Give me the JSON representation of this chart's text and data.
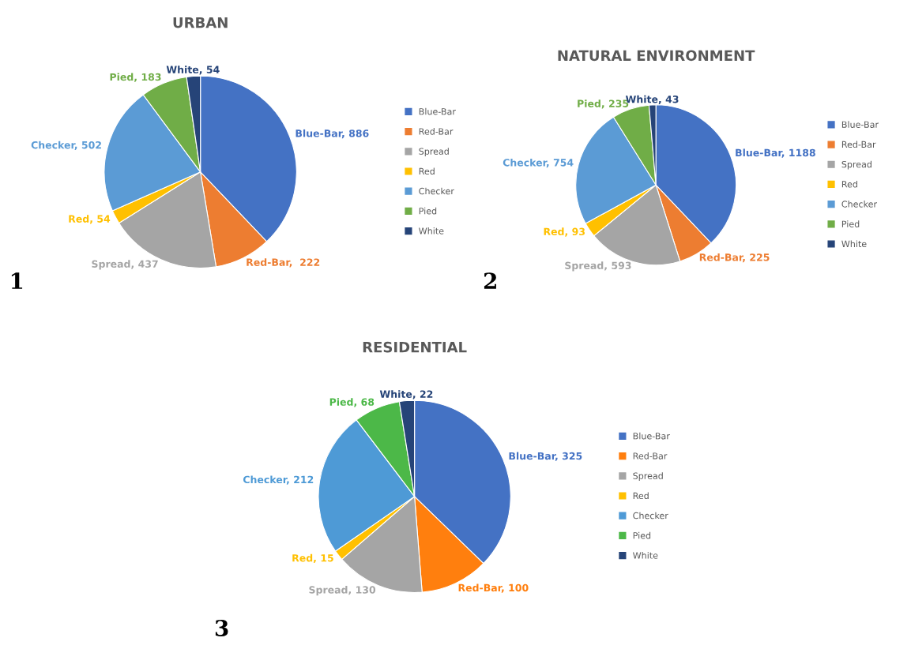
{
  "chart_data": [
    {
      "type": "pie",
      "title": "URBAN",
      "categories": [
        "Blue-Bar",
        "Red-Bar",
        "Spread",
        "Red",
        "Checker",
        "Pied",
        "White"
      ],
      "values": [
        886,
        222,
        437,
        54,
        502,
        183,
        54
      ],
      "value_labels": [
        "Blue-Bar, 886",
        "Red-Bar,  222",
        "Spread, 437",
        "Red, 54",
        "Checker, 502",
        "Pied, 183",
        "White, 54"
      ],
      "colors": [
        "#4472c4",
        "#ed7d31",
        "#a5a5a5",
        "#ffc000",
        "#5b9bd5",
        "#70ad47",
        "#264478"
      ],
      "legend": "right",
      "annotations": [
        "1"
      ]
    },
    {
      "type": "pie",
      "title": "NATURAL ENVIRONMENT",
      "categories": [
        "Blue-Bar",
        "Red-Bar",
        "Spread",
        "Red",
        "Checker",
        "Pied",
        "White"
      ],
      "values": [
        1188,
        225,
        593,
        93,
        754,
        235,
        43
      ],
      "value_labels": [
        "Blue-Bar, 1188",
        "Red-Bar, 225",
        "Spread, 593",
        "Red, 93",
        "Checker, 754",
        "Pied, 235",
        "White, 43"
      ],
      "colors": [
        "#4472c4",
        "#ed7d31",
        "#a5a5a5",
        "#ffc000",
        "#5b9bd5",
        "#70ad47",
        "#264478"
      ],
      "legend": "right",
      "annotations": [
        "2"
      ]
    },
    {
      "type": "pie",
      "title": "RESIDENTIAL",
      "categories": [
        "Blue-Bar",
        "Red-Bar",
        "Spread",
        "Red",
        "Checker",
        "Pied",
        "White"
      ],
      "values": [
        325,
        100,
        130,
        15,
        212,
        68,
        22
      ],
      "value_labels": [
        "Blue-Bar, 325",
        "Red-Bar, 100",
        "Spread, 130",
        "Red, 15",
        "Checker, 212",
        "Pied, 68",
        "White, 22"
      ],
      "colors": [
        "#4472c4",
        "#ff7f0e",
        "#a5a5a5",
        "#ffc000",
        "#4e9ad6",
        "#4cb848",
        "#264478"
      ],
      "legend": "right",
      "annotations": [
        "3"
      ]
    }
  ]
}
